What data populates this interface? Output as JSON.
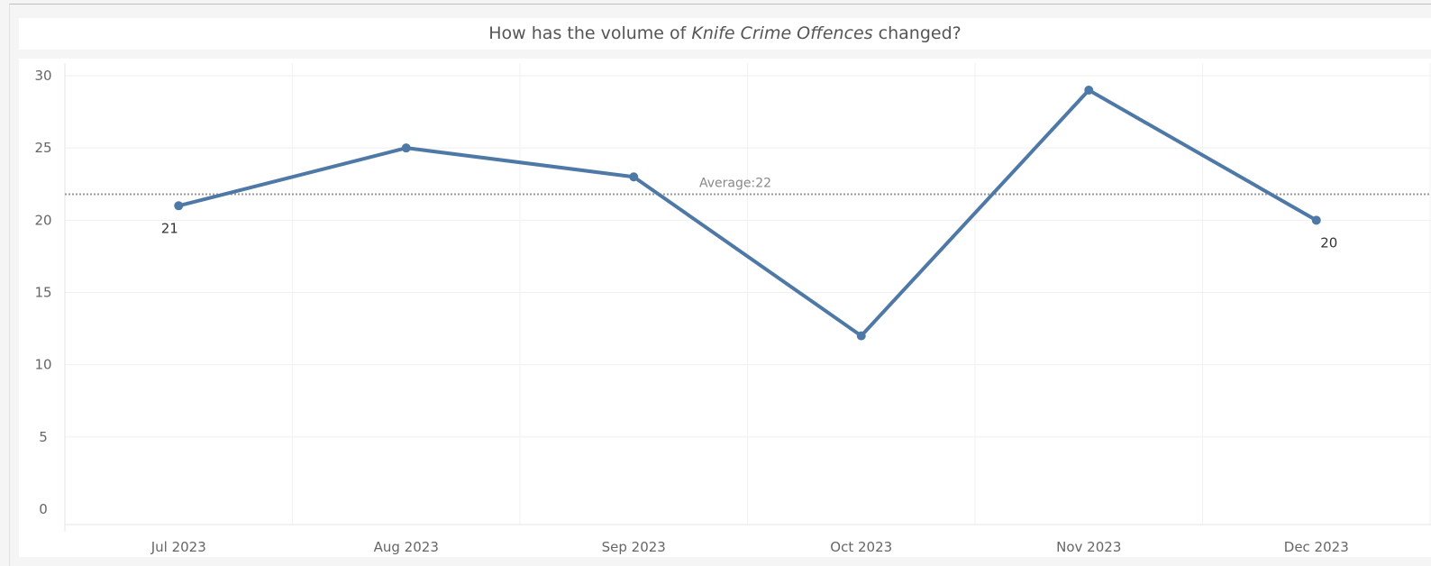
{
  "chart_data": {
    "type": "line",
    "title_prefix": "How has the volume of ",
    "title_emphasis": "Knife Crime Offences",
    "title_suffix": " changed?",
    "categories": [
      "Jul 2023",
      "Aug 2023",
      "Sep 2023",
      "Oct 2023",
      "Nov 2023",
      "Dec 2023"
    ],
    "series": [
      {
        "values": [
          21,
          25,
          23,
          12,
          29,
          20
        ],
        "color": "#4e79a7"
      }
    ],
    "ylim": [
      0,
      30
    ],
    "yticks": [
      0,
      5,
      10,
      15,
      20,
      25,
      30
    ],
    "grid": true,
    "data_labels": [
      {
        "index": 0,
        "text": "21"
      },
      {
        "index": 5,
        "text": "20"
      }
    ],
    "reference_line": {
      "value": 21.8,
      "label": "Average:22",
      "style": "dotted",
      "color": "#999999"
    }
  }
}
